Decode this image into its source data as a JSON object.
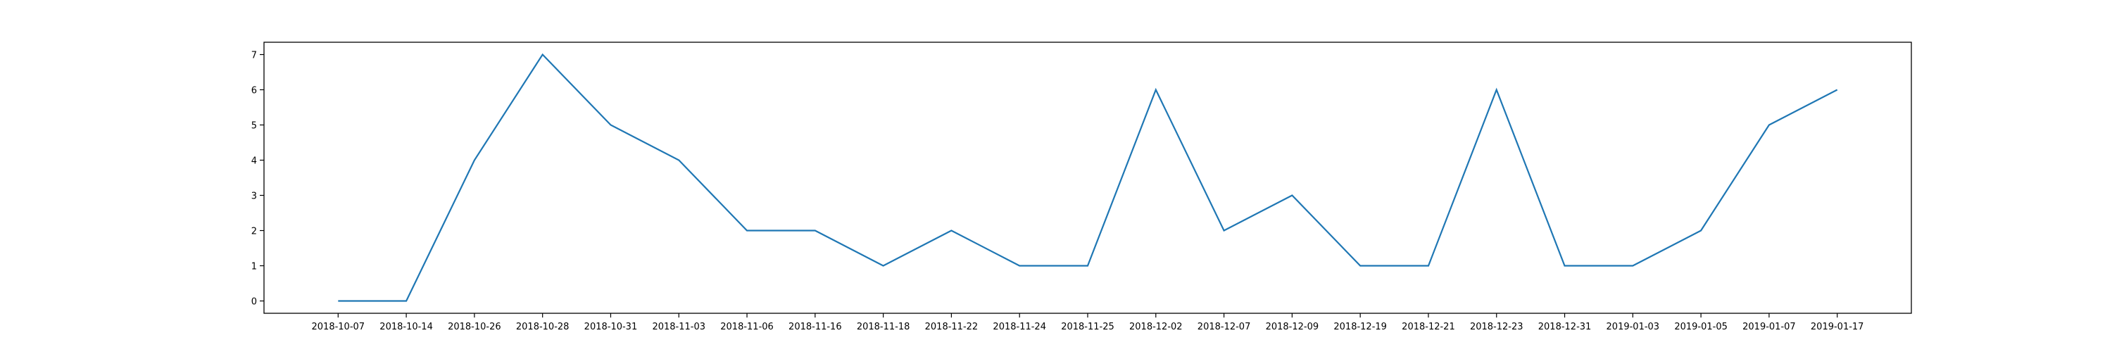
{
  "chart_data": {
    "type": "line",
    "title": "",
    "xlabel": "",
    "ylabel": "",
    "x": [
      "2018-10-07",
      "2018-10-14",
      "2018-10-26",
      "2018-10-28",
      "2018-10-31",
      "2018-11-03",
      "2018-11-06",
      "2018-11-16",
      "2018-11-18",
      "2018-11-22",
      "2018-11-24",
      "2018-11-25",
      "2018-12-02",
      "2018-12-07",
      "2018-12-09",
      "2018-12-19",
      "2018-12-21",
      "2018-12-23",
      "2018-12-31",
      "2019-01-03",
      "2019-01-05",
      "2019-01-07",
      "2019-01-17"
    ],
    "series": [
      {
        "values": [
          0,
          0,
          4,
          7,
          5,
          4,
          2,
          2,
          1,
          2,
          1,
          1,
          6,
          2,
          3,
          1,
          1,
          6,
          1,
          1,
          2,
          5,
          6
        ],
        "color": "#1f77b4"
      }
    ],
    "yticks": [
      0,
      1,
      2,
      3,
      4,
      5,
      6,
      7
    ],
    "ylim": [
      -0.35,
      7.35
    ],
    "grid": false,
    "legend": "none"
  }
}
